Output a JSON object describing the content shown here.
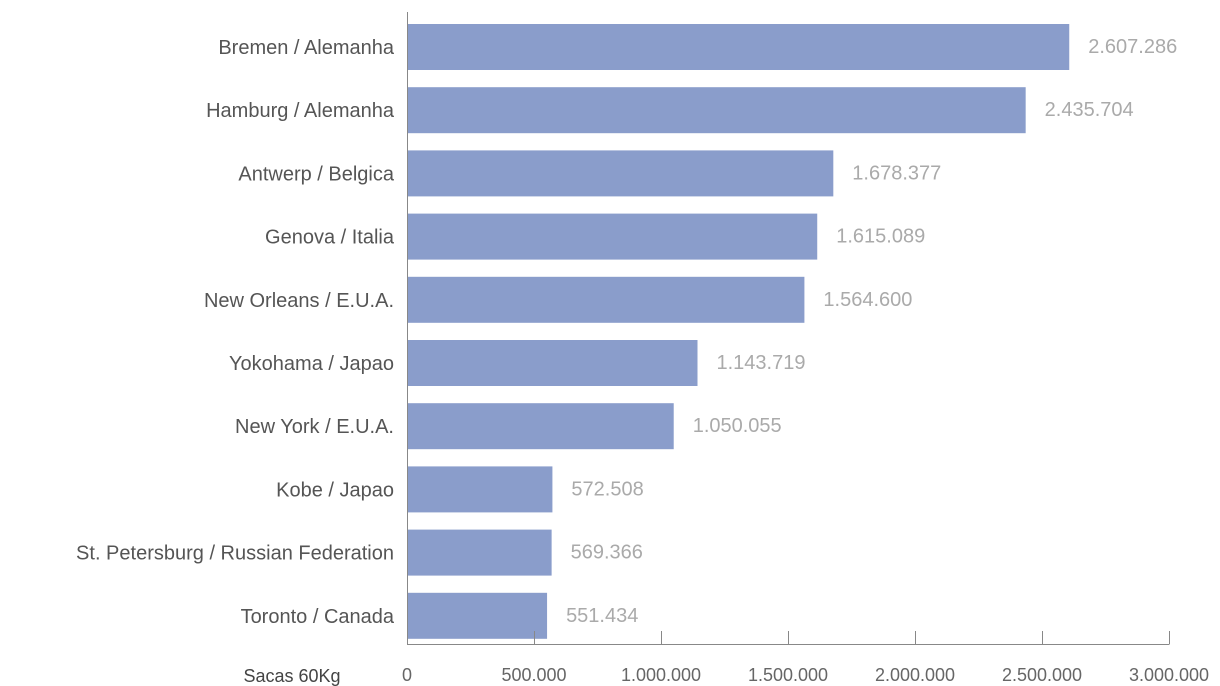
{
  "chart_data": {
    "type": "bar",
    "orientation": "horizontal",
    "categories": [
      "Bremen / Alemanha",
      "Hamburg / Alemanha",
      "Antwerp / Belgica",
      "Genova / Italia",
      "New Orleans / E.U.A.",
      "Yokohama / Japao",
      "New York / E.U.A.",
      "Kobe / Japao",
      "St. Petersburg / Russian Federation",
      "Toronto / Canada"
    ],
    "values": [
      2607286,
      2435704,
      1678377,
      1615089,
      1564600,
      1143719,
      1050055,
      572508,
      569366,
      551434
    ],
    "value_labels": [
      "2.607.286",
      "2.435.704",
      "1.678.377",
      "1.615.089",
      "1.564.600",
      "1.143.719",
      "1.050.055",
      "572.508",
      "569.366",
      "551.434"
    ],
    "xlabel": "Sacas 60Kg",
    "xlim": [
      0,
      3000000
    ],
    "xticks": [
      0,
      500000,
      1000000,
      1500000,
      2000000,
      2500000,
      3000000
    ],
    "xtick_labels": [
      "0",
      "500.000",
      "1.000.000",
      "1.500.000",
      "2.000.000",
      "2.500.000",
      "3.000.000"
    ],
    "bar_color": "#8a9dcb",
    "value_label_color": "#aaaaaa",
    "grid": false
  }
}
